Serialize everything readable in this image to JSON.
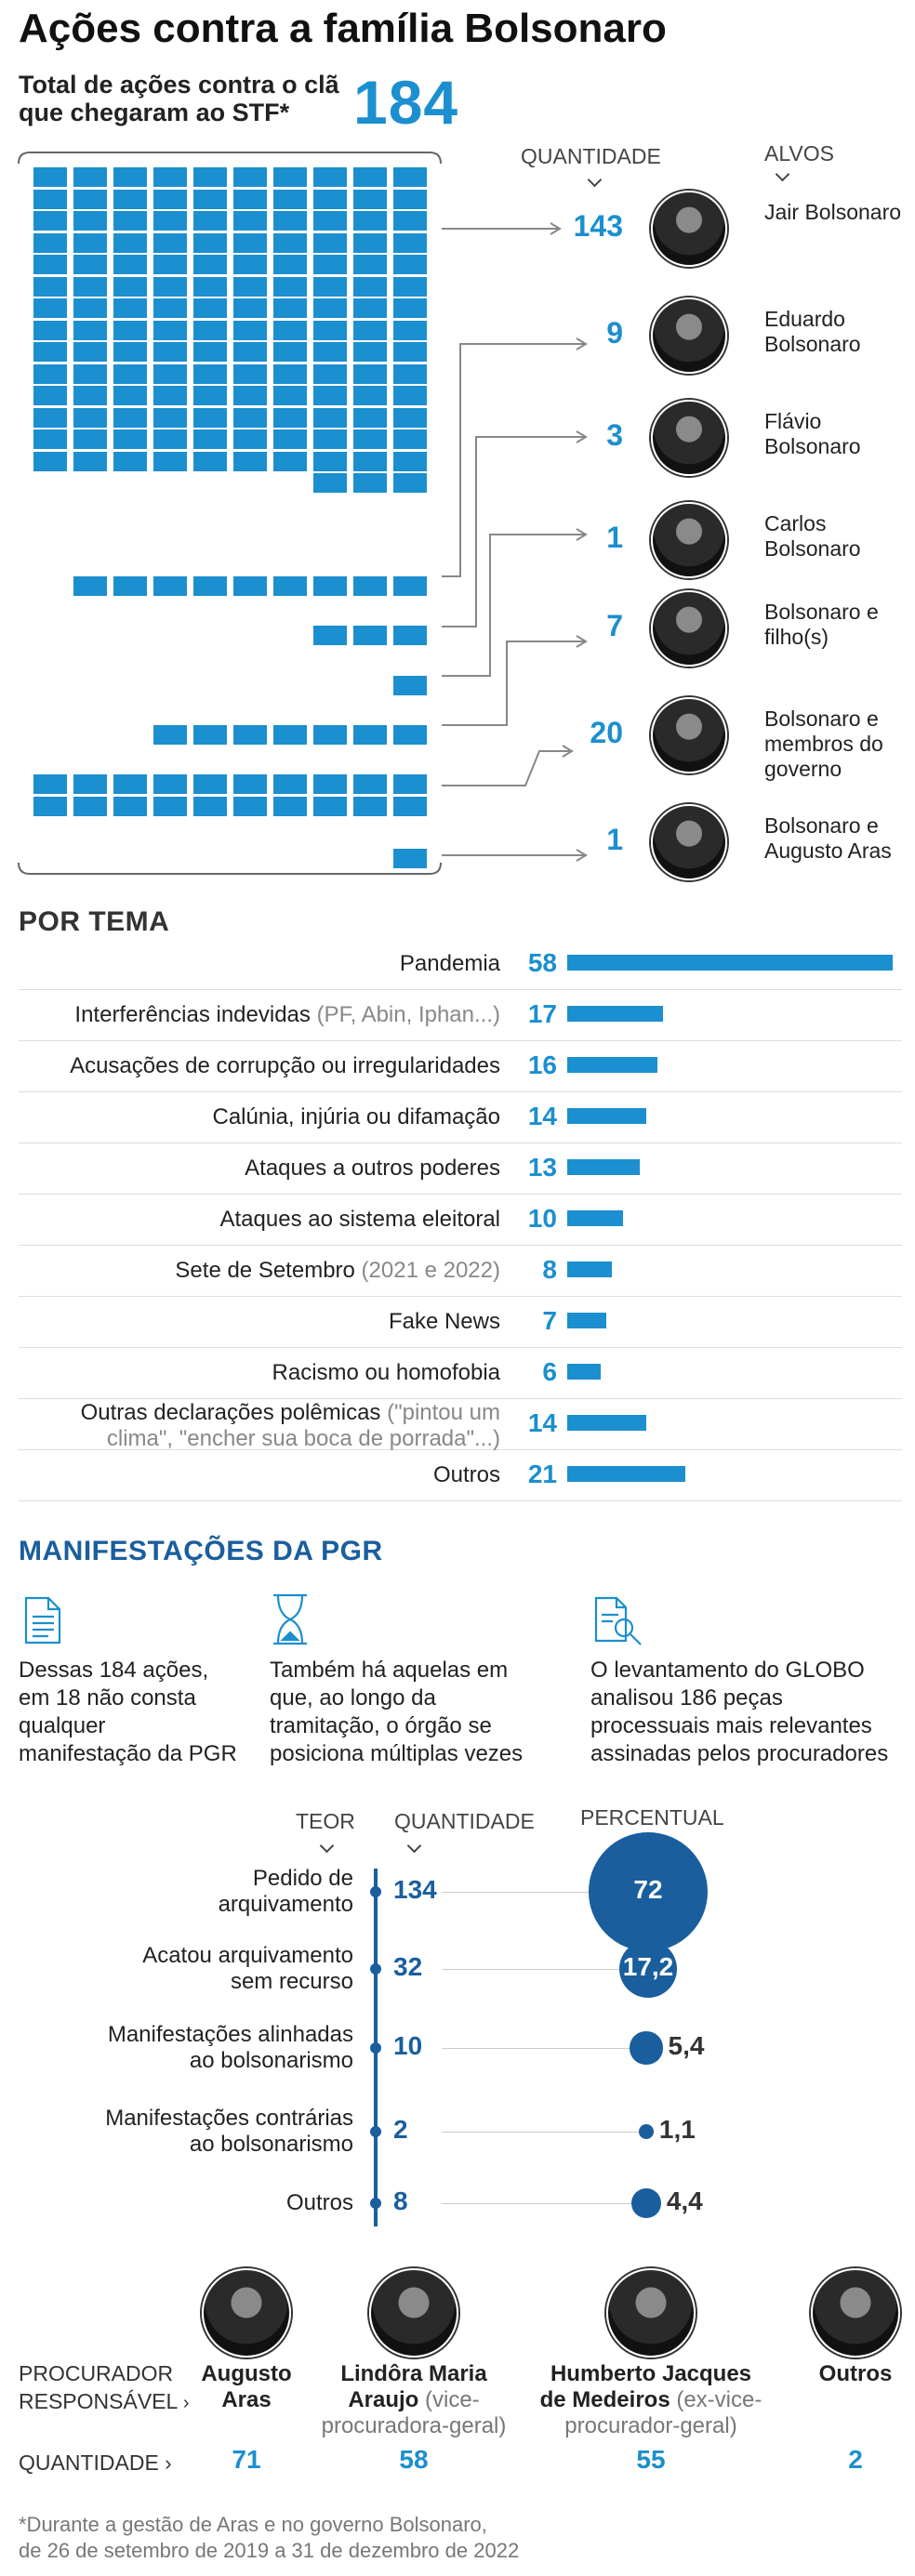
{
  "header": {
    "title": "Ações contra a família Bolsonaro",
    "subtitle": "Total de ações contra o clã que chegaram ao STF*",
    "total": "184"
  },
  "targets_header": {
    "quantity": "QUANTIDADE",
    "targets": "ALVOS"
  },
  "targets": [
    {
      "count": "143",
      "name": "Jair Bolsonaro"
    },
    {
      "count": "9",
      "name": "Eduardo Bolsonaro"
    },
    {
      "count": "3",
      "name": "Flávio Bolsonaro"
    },
    {
      "count": "1",
      "name": "Carlos Bolsonaro"
    },
    {
      "count": "7",
      "name": "Bolsonaro e filho(s)"
    },
    {
      "count": "20",
      "name": "Bolsonaro e membros do governo"
    },
    {
      "count": "1",
      "name": "Bolsonaro e Augusto Aras"
    }
  ],
  "por_tema": {
    "title": "POR TEMA",
    "rows": [
      {
        "label": "Pandemia",
        "extra": "",
        "value": "58"
      },
      {
        "label": "Interferências indevidas ",
        "extra": "(PF, Abin, Iphan...)",
        "value": "17"
      },
      {
        "label": "Acusações de corrupção ou irregularidades",
        "extra": "",
        "value": "16"
      },
      {
        "label": "Calúnia, injúria ou difamação",
        "extra": "",
        "value": "14"
      },
      {
        "label": "Ataques a outros poderes",
        "extra": "",
        "value": "13"
      },
      {
        "label": "Ataques ao sistema eleitoral",
        "extra": "",
        "value": "10"
      },
      {
        "label": "Sete de Setembro ",
        "extra": "(2021 e 2022)",
        "value": "8"
      },
      {
        "label": "Fake News",
        "extra": "",
        "value": "7"
      },
      {
        "label": "Racismo ou homofobia",
        "extra": "",
        "value": "6"
      },
      {
        "label": "Outras declarações polêmicas ",
        "extra": "(\"pintou um",
        "label2": "clima\", \"encher sua boca de porrada\"...)",
        "value": "14"
      },
      {
        "label": "Outros",
        "extra": "",
        "value": "21"
      }
    ]
  },
  "pgr": {
    "title": "MANIFESTAÇÕES DA PGR",
    "notes": [
      {
        "icon": "document-icon",
        "text": "Dessas 184 ações, em 18 não consta qualquer manifestação da PGR"
      },
      {
        "icon": "hourglass-icon",
        "text": "Também há aquelas em que, ao longo da tramitação, o órgão se posiciona múltiplas vezes"
      },
      {
        "icon": "document-search-icon",
        "text": "O levantamento do GLOBO analisou 186 peças processuais mais relevantes assinadas pelos procuradores"
      }
    ],
    "headers": {
      "teor": "TEOR",
      "quantidade": "QUANTIDADE",
      "percentual": "PERCENTUAL"
    },
    "rows": [
      {
        "teor1": "Pedido de",
        "teor2": "arquivamento",
        "qty": "134",
        "pct": "72"
      },
      {
        "teor1": "Acatou arquivamento",
        "teor2": "sem recurso",
        "qty": "32",
        "pct": "17,2"
      },
      {
        "teor1": "Manifestações alinhadas",
        "teor2": "ao bolsonarismo",
        "qty": "10",
        "pct": "5,4"
      },
      {
        "teor1": "Manifestações contrárias",
        "teor2": "ao bolsonarismo",
        "qty": "2",
        "pct": "1,1"
      },
      {
        "teor1": "Outros",
        "teor2": "",
        "qty": "8",
        "pct": "4,4"
      }
    ]
  },
  "procuradores": {
    "label1": "PROCURADOR",
    "label2": "RESPONSÁVEL",
    "qty_label": "QUANTIDADE",
    "people": [
      {
        "name1": "Augusto",
        "name2": "Aras",
        "note": "",
        "qty": "71"
      },
      {
        "name1": "Lindôra Maria",
        "name2": "Araujo ",
        "note": "(vice-procuradora-geral)",
        "qty": "58"
      },
      {
        "name1": "Humberto Jacques",
        "name2": "de Medeiros ",
        "note": "(ex-vice-procurador-geral)",
        "qty": "55"
      },
      {
        "name1": "Outros",
        "name2": "",
        "note": "",
        "qty": "2"
      }
    ]
  },
  "footnote": {
    "line1": "*Durante a gestão de Aras e no governo Bolsonaro,",
    "line2": "de 26 de setembro de 2019 a 31 de dezembro de 2022"
  },
  "chart_data": [
    {
      "type": "bar",
      "title": "Ações contra a família Bolsonaro",
      "categories": [
        "Jair Bolsonaro",
        "Eduardo Bolsonaro",
        "Flávio Bolsonaro",
        "Carlos Bolsonaro",
        "Bolsonaro e filho(s)",
        "Bolsonaro e membros do governo",
        "Bolsonaro e Augusto Aras"
      ],
      "values": [
        143,
        9,
        3,
        1,
        7,
        20,
        1
      ]
    },
    {
      "type": "bar",
      "title": "POR TEMA",
      "categories": [
        "Pandemia",
        "Interferências indevidas",
        "Acusações de corrupção ou irregularidades",
        "Calúnia, injúria ou difamação",
        "Ataques a outros poderes",
        "Ataques ao sistema eleitoral",
        "Sete de Setembro",
        "Fake News",
        "Racismo ou homofobia",
        "Outras declarações polêmicas",
        "Outros"
      ],
      "values": [
        58,
        17,
        16,
        14,
        13,
        10,
        8,
        7,
        6,
        14,
        21
      ]
    },
    {
      "type": "scatter",
      "title": "MANIFESTAÇÕES DA PGR",
      "categories": [
        "Pedido de arquivamento",
        "Acatou arquivamento sem recurso",
        "Manifestações alinhadas ao bolsonarismo",
        "Manifestações contrárias ao bolsonarismo",
        "Outros"
      ],
      "series": [
        {
          "name": "QUANTIDADE",
          "values": [
            134,
            32,
            10,
            2,
            8
          ]
        },
        {
          "name": "PERCENTUAL",
          "values": [
            72,
            17.2,
            5.4,
            1.1,
            4.4
          ]
        }
      ]
    },
    {
      "type": "table",
      "categories": [
        "Augusto Aras",
        "Lindôra Maria Araujo",
        "Humberto Jacques de Medeiros",
        "Outros"
      ],
      "values": [
        71,
        58,
        55,
        2
      ]
    }
  ]
}
